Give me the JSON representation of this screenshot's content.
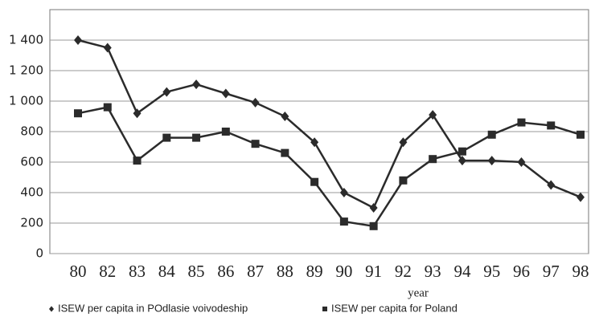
{
  "chart_data": {
    "type": "line",
    "x_label": "year",
    "categories": [
      "80",
      "82",
      "83",
      "84",
      "85",
      "86",
      "87",
      "88",
      "89",
      "90",
      "91",
      "92",
      "93",
      "94",
      "95",
      "96",
      "97",
      "98"
    ],
    "series": [
      {
        "name": "ISEW per capita in POdlasie voivodeship",
        "color": "#2b2b2b",
        "marker": "diamond",
        "values": [
          1400,
          1350,
          920,
          1060,
          1110,
          1050,
          990,
          900,
          730,
          400,
          300,
          730,
          910,
          610,
          610,
          600,
          450,
          370
        ]
      },
      {
        "name": "ISEW per capita for Poland",
        "color": "#2b2b2b",
        "marker": "square",
        "values": [
          920,
          960,
          610,
          760,
          760,
          800,
          720,
          660,
          470,
          210,
          180,
          480,
          620,
          670,
          780,
          860,
          840,
          780
        ]
      }
    ],
    "ylim": [
      0,
      1600
    ],
    "yticks": [
      0,
      200,
      400,
      600,
      800,
      {
        "value": 1000,
        "label": "1 000"
      },
      {
        "value": 1200,
        "label": "1 200"
      },
      {
        "value": 1400,
        "label": "1 400"
      }
    ],
    "grid": true
  }
}
